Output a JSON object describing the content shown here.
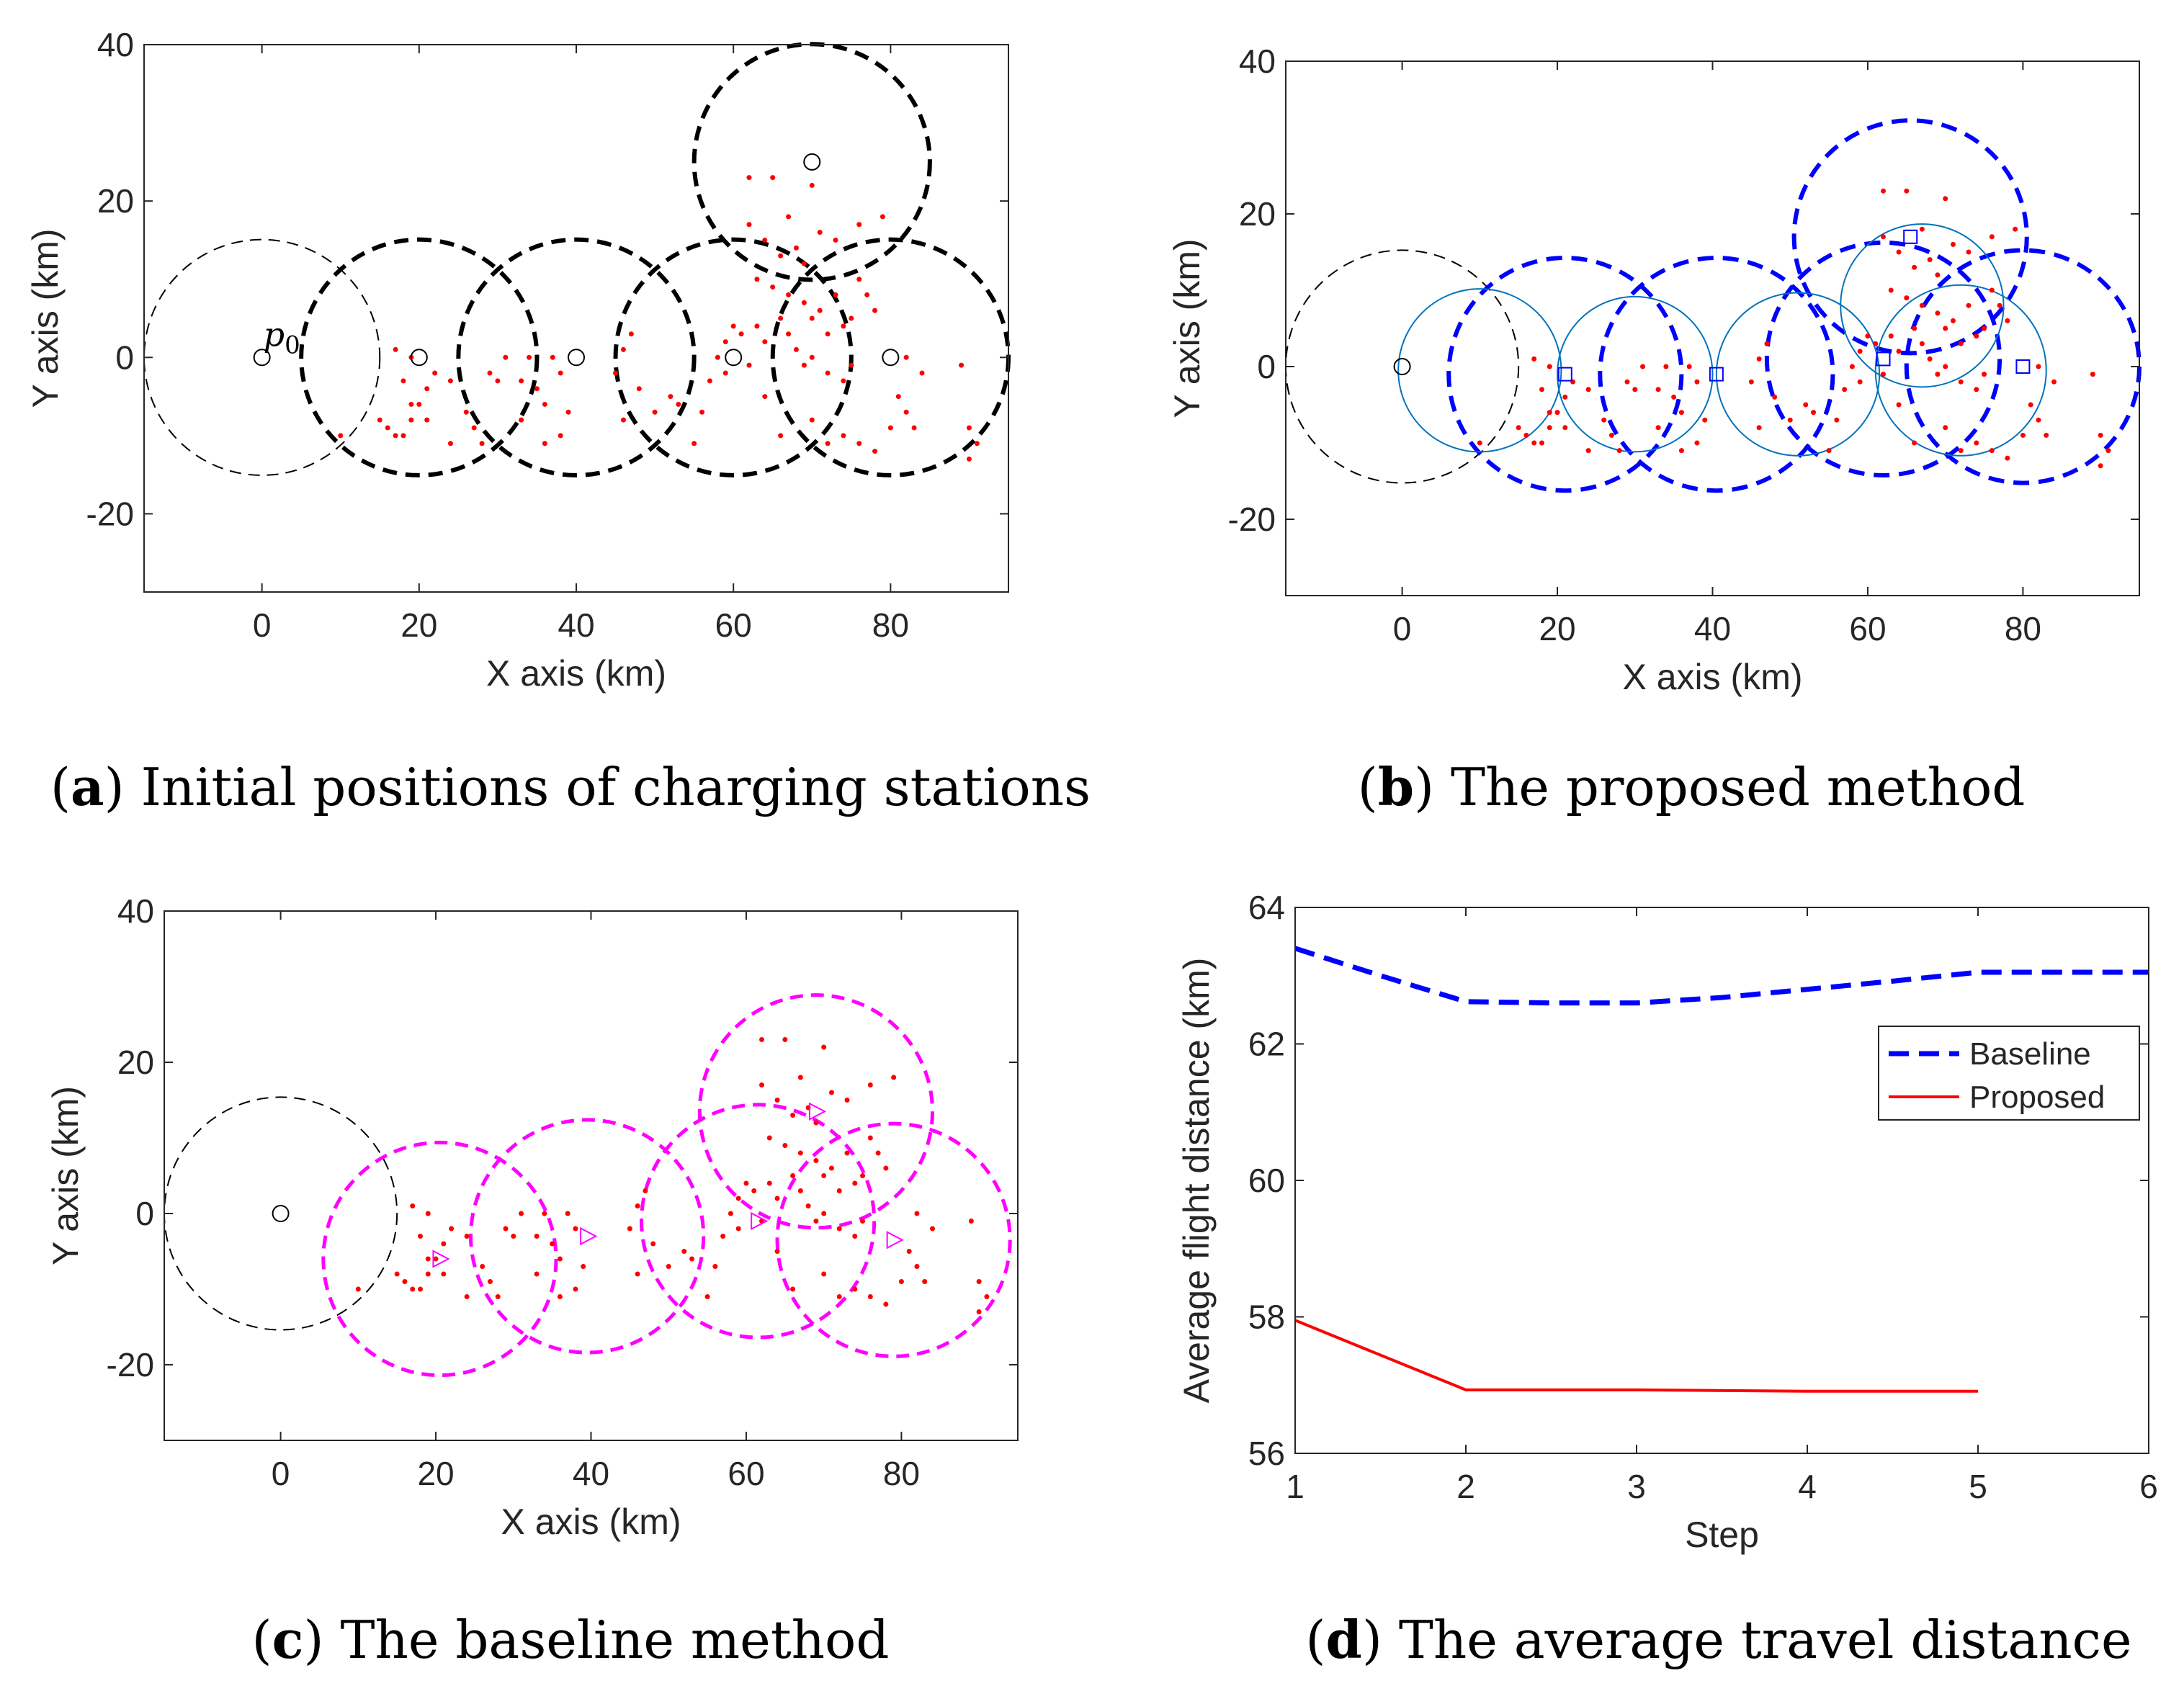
{
  "captions": [
    {
      "letter": "a",
      "text": "Initial positions of charging stations"
    },
    {
      "letter": "b",
      "text": "The proposed method"
    },
    {
      "letter": "c",
      "text": "The baseline method"
    },
    {
      "letter": "d",
      "text": "The average travel distance"
    }
  ],
  "colors": {
    "points": "#ff0000",
    "black_circles": "#000000",
    "blue_dashed": "#0000ff",
    "teal_solid": "#0072bd",
    "magenta": "#ff00ff",
    "baseline_line": "#0000ff",
    "proposed_line": "#ff0000"
  },
  "chart_data": [
    {
      "id": "a",
      "type": "scatter",
      "title": "",
      "xlabel": "X axis (km)",
      "ylabel": "Y axis (km)",
      "xlim": [
        -15,
        95
      ],
      "ylim": [
        -30,
        40
      ],
      "xticks": [
        0,
        20,
        40,
        60,
        80
      ],
      "yticks": [
        -20,
        0,
        20,
        40
      ],
      "annotation": {
        "text": "p",
        "sub": "0",
        "x": 0,
        "y": 0
      },
      "stations": [
        [
          0,
          0
        ],
        [
          20,
          0
        ],
        [
          40,
          0
        ],
        [
          60,
          0
        ],
        [
          80,
          0
        ],
        [
          70,
          25
        ]
      ],
      "circles": [
        {
          "cx": 0,
          "cy": 0,
          "r": 15,
          "style": "thin-black-dashed"
        },
        {
          "cx": 20,
          "cy": 0,
          "r": 15,
          "style": "thick-black-dashed"
        },
        {
          "cx": 40,
          "cy": 0,
          "r": 15,
          "style": "thick-black-dashed"
        },
        {
          "cx": 60,
          "cy": 0,
          "r": 15,
          "style": "thick-black-dashed"
        },
        {
          "cx": 80,
          "cy": 0,
          "r": 15,
          "style": "thick-black-dashed"
        },
        {
          "cx": 70,
          "cy": 25,
          "r": 15,
          "style": "thick-black-dashed"
        }
      ]
    },
    {
      "id": "b",
      "type": "scatter",
      "title": "",
      "xlabel": "X axis (km)",
      "ylabel": "Y axis (km)",
      "xlim": [
        -15,
        95
      ],
      "ylim": [
        -30,
        40
      ],
      "xticks": [
        0,
        20,
        40,
        60,
        80
      ],
      "yticks": [
        -20,
        0,
        20,
        40
      ],
      "origin": [
        0,
        0
      ],
      "stations": [
        [
          21,
          -1
        ],
        [
          40.5,
          -1
        ],
        [
          62,
          1
        ],
        [
          65.5,
          17
        ],
        [
          80,
          0
        ]
      ],
      "circles": [
        {
          "cx": 0,
          "cy": 0,
          "r": 15,
          "style": "thin-black-dashed"
        },
        {
          "cx": 21,
          "cy": -1,
          "r": 15,
          "style": "blue-dashed"
        },
        {
          "cx": 40.5,
          "cy": -1,
          "r": 15,
          "style": "blue-dashed"
        },
        {
          "cx": 62,
          "cy": 1,
          "r": 15,
          "style": "blue-dashed"
        },
        {
          "cx": 65.5,
          "cy": 17,
          "r": 15,
          "style": "blue-dashed"
        },
        {
          "cx": 80,
          "cy": 0,
          "r": 15,
          "style": "blue-dashed"
        },
        {
          "cx": 10,
          "cy": -0.5,
          "r": 10.5,
          "style": "teal-solid"
        },
        {
          "cx": 30,
          "cy": -1,
          "r": 10,
          "style": "teal-solid"
        },
        {
          "cx": 51,
          "cy": -1,
          "r": 10.5,
          "style": "teal-solid"
        },
        {
          "cx": 67,
          "cy": 8,
          "r": 10.5,
          "style": "teal-solid"
        },
        {
          "cx": 72,
          "cy": -0.5,
          "r": 11,
          "style": "teal-solid"
        }
      ]
    },
    {
      "id": "c",
      "type": "scatter",
      "title": "",
      "xlabel": "X axis (km)",
      "ylabel": "Y axis (km)",
      "xlim": [
        -15,
        95
      ],
      "ylim": [
        -30,
        40
      ],
      "xticks": [
        0,
        20,
        40,
        60,
        80
      ],
      "yticks": [
        -20,
        0,
        20,
        40
      ],
      "origin": [
        0,
        0
      ],
      "stations": [
        [
          20.5,
          -6
        ],
        [
          39.5,
          -3
        ],
        [
          61.5,
          -1
        ],
        [
          69,
          13.5
        ],
        [
          79,
          -3.5
        ]
      ],
      "circles": [
        {
          "cx": 0,
          "cy": 0,
          "r": 15,
          "style": "thin-black-dashed"
        },
        {
          "cx": 20.5,
          "cy": -6,
          "r": 15,
          "style": "magenta-dashed"
        },
        {
          "cx": 39.5,
          "cy": -3,
          "r": 15,
          "style": "magenta-dashed"
        },
        {
          "cx": 61.5,
          "cy": -1,
          "r": 15,
          "style": "magenta-dashed"
        },
        {
          "cx": 69,
          "cy": 13.5,
          "r": 15,
          "style": "magenta-dashed"
        },
        {
          "cx": 79,
          "cy": -3.5,
          "r": 15,
          "style": "magenta-dashed"
        }
      ]
    },
    {
      "id": "d",
      "type": "line",
      "title": "",
      "xlabel": "Step",
      "ylabel": "Average flight distance (km)",
      "xlim": [
        1,
        6
      ],
      "ylim": [
        56,
        64
      ],
      "xticks": [
        1,
        2,
        3,
        4,
        5,
        6
      ],
      "yticks": [
        56,
        58,
        60,
        62,
        64
      ],
      "legend_position": "right",
      "series": [
        {
          "name": "Baseline",
          "x": [
            1,
            1.5,
            2,
            2.5,
            3,
            3.5,
            4,
            4.5,
            5,
            5.5,
            6
          ],
          "values": [
            63.4,
            63.0,
            62.62,
            62.6,
            62.6,
            62.68,
            62.8,
            62.92,
            63.05,
            63.05,
            63.05
          ],
          "style": "dashed"
        },
        {
          "name": "Proposed",
          "x": [
            1,
            2,
            3,
            4,
            5
          ],
          "values": [
            57.95,
            56.93,
            56.93,
            56.91,
            56.91
          ],
          "style": "solid"
        }
      ]
    }
  ],
  "demand_points": [
    [
      10,
      -10
    ],
    [
      15,
      -8
    ],
    [
      16,
      -9
    ],
    [
      17,
      -10
    ],
    [
      18,
      -10
    ],
    [
      19,
      -8
    ],
    [
      20,
      -6
    ],
    [
      21,
      -4
    ],
    [
      22,
      -2
    ],
    [
      17,
      1
    ],
    [
      19,
      0
    ],
    [
      21,
      -8
    ],
    [
      18,
      -3
    ],
    [
      19,
      -6
    ],
    [
      24,
      -3
    ],
    [
      24,
      -11
    ],
    [
      26,
      -7
    ],
    [
      27,
      -9
    ],
    [
      28,
      -11
    ],
    [
      29,
      -2
    ],
    [
      30,
      -3
    ],
    [
      31,
      0
    ],
    [
      33,
      -3
    ],
    [
      33,
      -8
    ],
    [
      34,
      0
    ],
    [
      35,
      -4
    ],
    [
      36,
      -6
    ],
    [
      36,
      -11
    ],
    [
      37,
      0
    ],
    [
      38,
      -10
    ],
    [
      38,
      -2
    ],
    [
      39,
      -7
    ],
    [
      45,
      -2
    ],
    [
      46,
      1
    ],
    [
      46,
      -8
    ],
    [
      47,
      3
    ],
    [
      48,
      -4
    ],
    [
      50,
      -7
    ],
    [
      52,
      -5
    ],
    [
      53,
      -6
    ],
    [
      55,
      -11
    ],
    [
      56,
      -7
    ],
    [
      57,
      -3
    ],
    [
      58,
      0
    ],
    [
      59,
      -2
    ],
    [
      59,
      2
    ],
    [
      60,
      4
    ],
    [
      61,
      3
    ],
    [
      62,
      -1
    ],
    [
      63,
      4
    ],
    [
      64,
      2
    ],
    [
      64,
      -5
    ],
    [
      62,
      23
    ],
    [
      65,
      23
    ],
    [
      67,
      18
    ],
    [
      70,
      22
    ],
    [
      62,
      17
    ],
    [
      64,
      15
    ],
    [
      66,
      13
    ],
    [
      68,
      14
    ],
    [
      69,
      12
    ],
    [
      71,
      16
    ],
    [
      73,
      15
    ],
    [
      76,
      17
    ],
    [
      79,
      18
    ],
    [
      63,
      10
    ],
    [
      65,
      9
    ],
    [
      67,
      8
    ],
    [
      69,
      7
    ],
    [
      70,
      5
    ],
    [
      71,
      6
    ],
    [
      72,
      3
    ],
    [
      73,
      8
    ],
    [
      74,
      4
    ],
    [
      75,
      5
    ],
    [
      76,
      10
    ],
    [
      77,
      8
    ],
    [
      78,
      6
    ],
    [
      66,
      5
    ],
    [
      67,
      3
    ],
    [
      68,
      1
    ],
    [
      69,
      -1
    ],
    [
      70,
      0
    ],
    [
      72,
      -2
    ],
    [
      74,
      -3
    ],
    [
      75,
      -1
    ],
    [
      66,
      -10
    ],
    [
      70,
      -8
    ],
    [
      72,
      -11
    ],
    [
      74,
      -10
    ],
    [
      76,
      -11
    ],
    [
      78,
      -12
    ],
    [
      80,
      -9
    ],
    [
      81,
      -5
    ],
    [
      82,
      -7
    ],
    [
      83,
      -9
    ],
    [
      82,
      0
    ],
    [
      84,
      -2
    ],
    [
      89,
      -1
    ],
    [
      90,
      -9
    ],
    [
      91,
      -11
    ],
    [
      90,
      -13
    ]
  ]
}
